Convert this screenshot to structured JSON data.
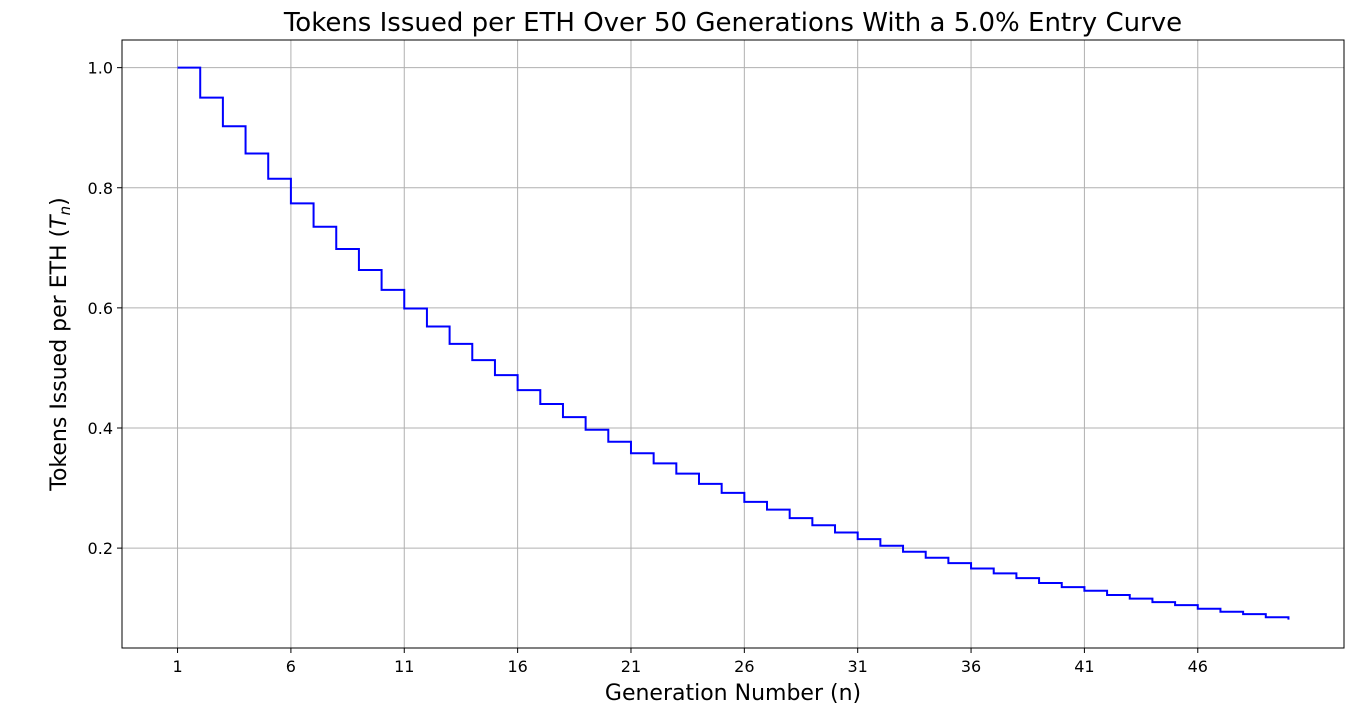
{
  "chart_data": {
    "type": "line",
    "step": "post",
    "title": "Tokens Issued per ETH Over 50 Generations With a 5.0% Entry Curve",
    "xlabel": "Generation Number (n)",
    "ylabel_main": "Tokens Issued per ETH (",
    "ylabel_var": "T",
    "ylabel_sub": "n",
    "ylabel_close": ")",
    "xlim": [
      -1.45,
      52.45
    ],
    "ylim": [
      0.0337,
      1.046
    ],
    "x_ticks": [
      1,
      6,
      11,
      16,
      21,
      26,
      31,
      36,
      41,
      46
    ],
    "x_tick_labels": [
      "1",
      "6",
      "11",
      "16",
      "21",
      "26",
      "31",
      "36",
      "41",
      "46"
    ],
    "y_ticks": [
      0.2,
      0.4,
      0.6,
      0.8,
      1.0
    ],
    "y_tick_labels": [
      "0.2",
      "0.4",
      "0.6",
      "0.8",
      "1.0"
    ],
    "grid": true,
    "color": "#0000ff",
    "series": [
      {
        "x": [
          1,
          2,
          3,
          4,
          5,
          6,
          7,
          8,
          9,
          10,
          11,
          12,
          13,
          14,
          15,
          16,
          17,
          18,
          19,
          20,
          21,
          22,
          23,
          24,
          25,
          26,
          27,
          28,
          29,
          30,
          31,
          32,
          33,
          34,
          35,
          36,
          37,
          38,
          39,
          40,
          41,
          42,
          43,
          44,
          45,
          46,
          47,
          48,
          49,
          50
        ],
        "values": [
          1.0,
          0.95,
          0.9025,
          0.857,
          0.815,
          0.774,
          0.735,
          0.698,
          0.663,
          0.63,
          0.599,
          0.569,
          0.54,
          0.513,
          0.488,
          0.463,
          0.44,
          0.418,
          0.397,
          0.377,
          0.358,
          0.341,
          0.324,
          0.307,
          0.292,
          0.277,
          0.264,
          0.25,
          0.238,
          0.226,
          0.215,
          0.204,
          0.194,
          0.184,
          0.175,
          0.166,
          0.158,
          0.15,
          0.142,
          0.135,
          0.129,
          0.122,
          0.116,
          0.11,
          0.105,
          0.099,
          0.094,
          0.09,
          0.085,
          0.081
        ]
      }
    ]
  }
}
